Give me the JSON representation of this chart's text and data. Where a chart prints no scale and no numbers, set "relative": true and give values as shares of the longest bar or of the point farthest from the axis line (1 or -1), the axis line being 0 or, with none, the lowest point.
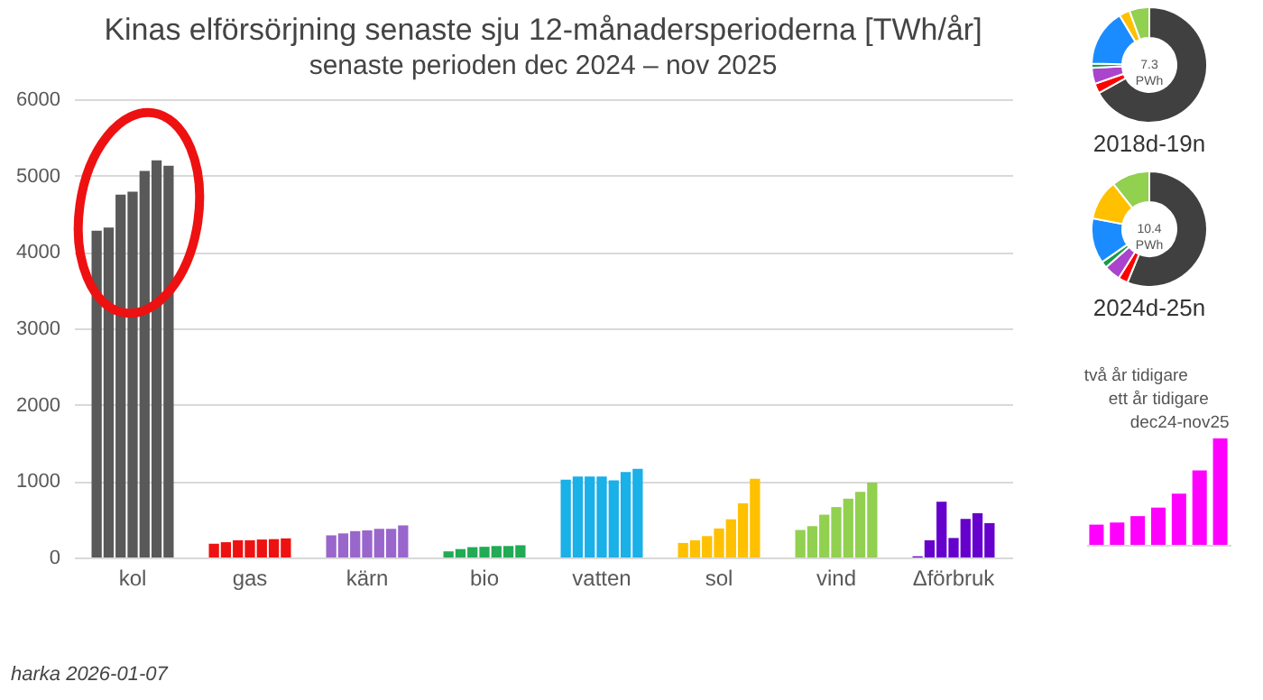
{
  "chart_data": [
    {
      "type": "bar",
      "title": "Kinas elförsörjning senaste sju 12-månadersperioderna [TWh/år]",
      "subtitle": "senaste perioden dec 2024 – nov 2025",
      "categories": [
        "kol",
        "gas",
        "kärn",
        "bio",
        "vatten",
        "sol",
        "vind",
        "Δförbruk"
      ],
      "series": [
        {
          "colors": [
            "#595959",
            "#ee1111",
            "#9966cc",
            "#22aa55",
            "#1ab0e8",
            "#ffc000",
            "#92d050",
            "#6600cc"
          ],
          "values": [
            4280,
            180,
            290,
            80,
            1020,
            190,
            360,
            15
          ]
        },
        {
          "colors": [
            "#595959",
            "#ee1111",
            "#9966cc",
            "#22aa55",
            "#1ab0e8",
            "#ffc000",
            "#92d050",
            "#6600cc"
          ],
          "values": [
            4320,
            200,
            315,
            110,
            1060,
            225,
            410,
            225
          ]
        },
        {
          "colors": [
            "#595959",
            "#ee1111",
            "#9966cc",
            "#22aa55",
            "#1ab0e8",
            "#ffc000",
            "#92d050",
            "#6600cc"
          ],
          "values": [
            4750,
            225,
            345,
            135,
            1060,
            280,
            560,
            730
          ]
        },
        {
          "colors": [
            "#595959",
            "#ee1111",
            "#9966cc",
            "#22aa55",
            "#1ab0e8",
            "#ffc000",
            "#92d050",
            "#6600cc"
          ],
          "values": [
            4790,
            225,
            355,
            140,
            1060,
            380,
            660,
            255
          ]
        },
        {
          "colors": [
            "#595959",
            "#ee1111",
            "#9966cc",
            "#22aa55",
            "#1ab0e8",
            "#ffc000",
            "#92d050",
            "#6600cc"
          ],
          "values": [
            5060,
            235,
            375,
            150,
            1010,
            500,
            770,
            505
          ]
        },
        {
          "colors": [
            "#595959",
            "#ee1111",
            "#9966cc",
            "#22aa55",
            "#1ab0e8",
            "#ffc000",
            "#92d050",
            "#6600cc"
          ],
          "values": [
            5200,
            240,
            375,
            150,
            1120,
            710,
            860,
            580
          ]
        },
        {
          "colors": [
            "#595959",
            "#ee1111",
            "#9966cc",
            "#22aa55",
            "#1ab0e8",
            "#ffc000",
            "#92d050",
            "#6600cc"
          ],
          "values": [
            5130,
            250,
            420,
            160,
            1160,
            1030,
            980,
            450
          ]
        }
      ],
      "ylim": [
        0,
        6000
      ],
      "yticks": [
        0,
        1000,
        2000,
        3000,
        4000,
        5000,
        6000
      ],
      "grid": "y",
      "annotations": [
        "harka 2026-01-07"
      ]
    },
    {
      "type": "donut",
      "title": "2018d-19n",
      "categories": [
        null,
        null,
        null,
        null,
        null,
        null,
        null
      ],
      "values": [
        66.9,
        2.8,
        4.5,
        1.2,
        16.0,
        3.0,
        5.6
      ],
      "colors": [
        "#404040",
        "#ff0000",
        "#aa44cc",
        "#1a9b48",
        "#1a8cff",
        "#ffc000",
        "#92d050"
      ],
      "annotations": [
        "7.3 PWh"
      ]
    },
    {
      "type": "donut",
      "title": "2024d-25n",
      "categories": [
        null,
        null,
        null,
        null,
        null,
        null,
        null
      ],
      "values": [
        56.2,
        2.7,
        4.6,
        1.8,
        12.7,
        11.3,
        10.7
      ],
      "colors": [
        "#404040",
        "#ff0000",
        "#aa44cc",
        "#1a9b48",
        "#1a8cff",
        "#ffc000",
        "#92d050"
      ],
      "annotations": [
        "10.4 PWh"
      ]
    },
    {
      "type": "bar",
      "relative": true,
      "categories": [
        null,
        null,
        null,
        null,
        null,
        null,
        null
      ],
      "values": [
        0.19,
        0.21,
        0.27,
        0.35,
        0.48,
        0.7,
        1
      ],
      "color": "#ff00ff",
      "annotations": [
        "två år tidigare",
        "ett år tidigare",
        "dec24-nov25"
      ]
    }
  ]
}
